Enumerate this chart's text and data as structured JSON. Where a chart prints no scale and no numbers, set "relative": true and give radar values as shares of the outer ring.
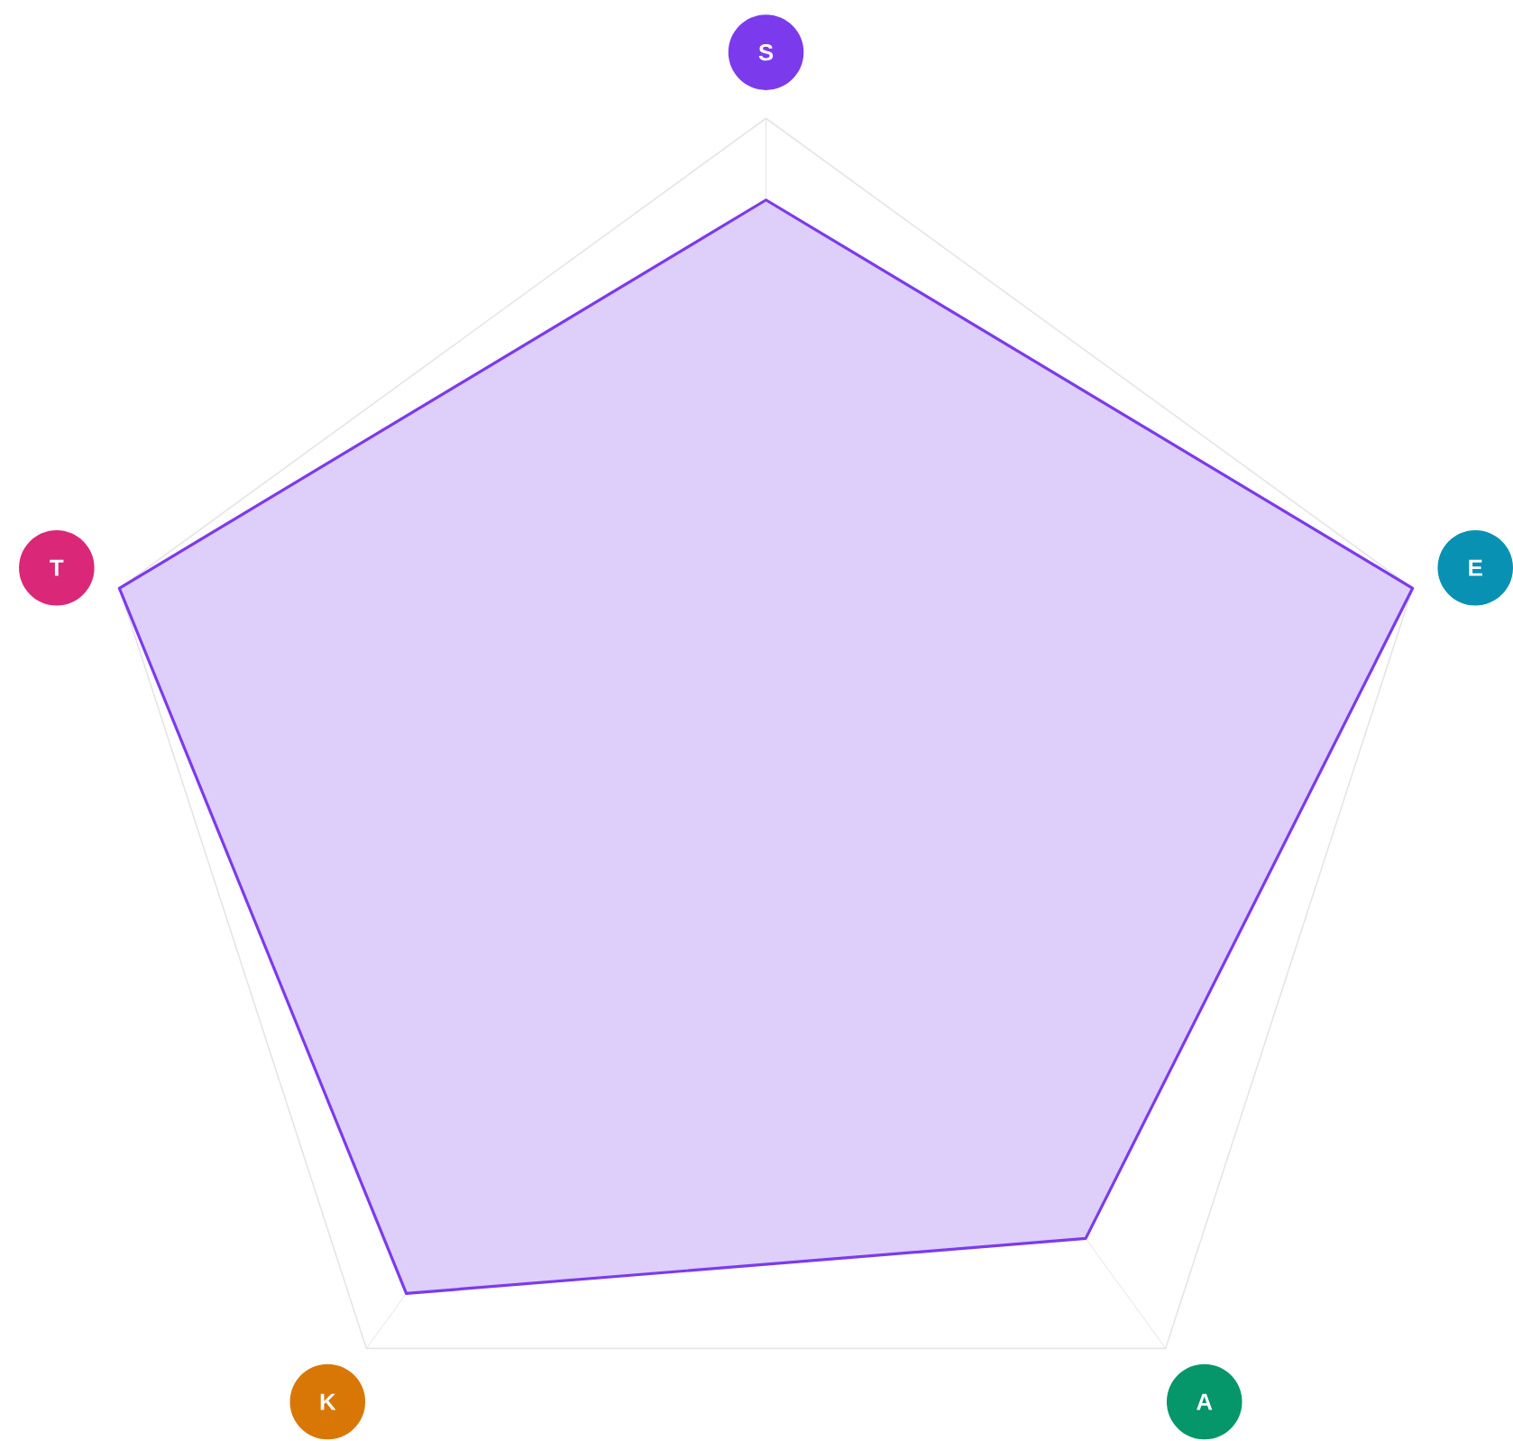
{
  "chart_data": {
    "type": "radar",
    "relative": true,
    "grid": true,
    "categories": [
      "S",
      "E",
      "A",
      "K",
      "T"
    ],
    "series": [
      {
        "color": "#7c3aed",
        "values": [
          0.88,
          1.0,
          0.8,
          0.9,
          1.0
        ]
      }
    ]
  }
}
